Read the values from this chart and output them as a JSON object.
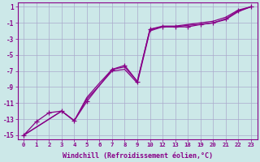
{
  "xlabel": "Windchill (Refroidissement éolien,°C)",
  "bg_color": "#cce8e8",
  "grid_color": "#aaaacc",
  "line_color": "#880088",
  "ylim": [
    -15.5,
    1.5
  ],
  "ytick_pos": [
    1,
    -1,
    -3,
    -5,
    -7,
    -9,
    -11,
    -13,
    -15
  ],
  "ytick_lab": [
    "1",
    "-1",
    "-3",
    "-5",
    "-7",
    "-9",
    "-11",
    "-13",
    "-15"
  ],
  "xtick_lab": [
    "0",
    "1",
    "2",
    "3",
    "4",
    "5",
    "6",
    "7",
    "8",
    "9",
    "10",
    "12",
    "13",
    "18",
    "19",
    "20",
    "21",
    "22",
    "23"
  ],
  "line1_idx": [
    0,
    1,
    2,
    3,
    4,
    5,
    6,
    7,
    8,
    9,
    10,
    11,
    12,
    13,
    14,
    15,
    16,
    17,
    18
  ],
  "line1_y": [
    -15,
    -13.3,
    -12.2,
    -12.0,
    -13.2,
    -10.8,
    -8.8,
    -6.8,
    -6.3,
    -8.3,
    -1.8,
    -1.5,
    -1.5,
    -1.5,
    -1.2,
    -1.0,
    -0.5,
    0.5,
    1.0
  ],
  "line2_idx": [
    0,
    3,
    4,
    5,
    6,
    7,
    8,
    9,
    10,
    11,
    12,
    13,
    14,
    15,
    16,
    17,
    18
  ],
  "line2_y": [
    -15,
    -12.0,
    -13.2,
    -10.5,
    -8.8,
    -7.0,
    -6.8,
    -8.5,
    -2.0,
    -1.5,
    -1.5,
    -1.3,
    -1.2,
    -1.0,
    -0.6,
    0.4,
    1.0
  ],
  "line3_idx": [
    0,
    3,
    4,
    5,
    6,
    7,
    8,
    9,
    10,
    11,
    12,
    13,
    14,
    15,
    16,
    17,
    18
  ],
  "line3_y": [
    -15,
    -12.0,
    -13.2,
    -10.3,
    -8.5,
    -6.8,
    -6.5,
    -8.3,
    -1.8,
    -1.4,
    -1.4,
    -1.2,
    -1.0,
    -0.8,
    -0.3,
    0.6,
    1.0
  ],
  "mark_idx": [
    0,
    1,
    2,
    3,
    4,
    5,
    7,
    8,
    9,
    10,
    11,
    12,
    13,
    14,
    15,
    16,
    17,
    18
  ],
  "mark_y": [
    -15,
    -13.3,
    -12.2,
    -12.0,
    -13.2,
    -10.8,
    -6.8,
    -6.3,
    -8.3,
    -1.8,
    -1.5,
    -1.5,
    -1.5,
    -1.2,
    -1.0,
    -0.5,
    0.5,
    1.0
  ]
}
